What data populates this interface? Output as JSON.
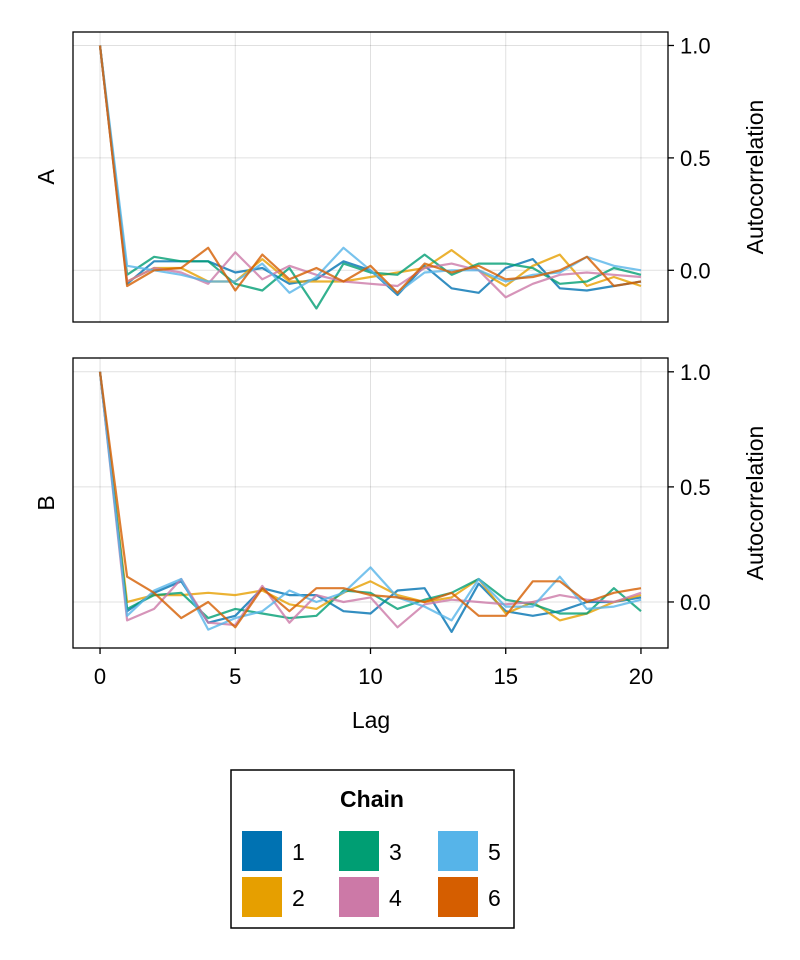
{
  "chart_data": [
    {
      "type": "line",
      "panel_label": "A",
      "ylabel": "Autocorrelation",
      "xlim": [
        -1,
        21
      ],
      "ylim": [
        -0.23,
        1.06
      ],
      "yticks": [
        0.0,
        0.5,
        1.0
      ],
      "ytick_labels": [
        "0.0",
        "0.5",
        "1.0"
      ],
      "xticks": [
        0,
        5,
        10,
        15,
        20
      ],
      "x": [
        0,
        1,
        2,
        3,
        4,
        5,
        6,
        7,
        8,
        9,
        10,
        11,
        12,
        13,
        14,
        15,
        16,
        17,
        18,
        19,
        20
      ],
      "grid": true,
      "series": [
        {
          "name": "1",
          "color": "#0072b2",
          "values": [
            1.0,
            -0.06,
            0.04,
            0.04,
            0.04,
            -0.01,
            0.01,
            -0.06,
            -0.04,
            0.04,
            0.0,
            -0.11,
            0.02,
            -0.08,
            -0.1,
            0.01,
            0.05,
            -0.08,
            -0.09,
            -0.07,
            -0.05
          ]
        },
        {
          "name": "2",
          "color": "#e69f00",
          "values": [
            1.0,
            -0.05,
            0.01,
            0.01,
            -0.05,
            -0.05,
            0.05,
            -0.05,
            -0.05,
            -0.05,
            -0.03,
            -0.01,
            0.01,
            0.09,
            0.0,
            -0.07,
            0.02,
            0.07,
            -0.07,
            -0.03,
            -0.07
          ]
        },
        {
          "name": "3",
          "color": "#009e73",
          "values": [
            1.0,
            -0.02,
            0.06,
            0.04,
            0.04,
            -0.06,
            -0.09,
            0.01,
            -0.17,
            0.03,
            -0.01,
            -0.02,
            0.07,
            -0.02,
            0.03,
            0.03,
            0.01,
            -0.06,
            -0.05,
            0.01,
            -0.02
          ]
        },
        {
          "name": "4",
          "color": "#cc79a7",
          "values": [
            1.0,
            -0.05,
            0.01,
            -0.01,
            -0.06,
            0.08,
            -0.04,
            0.02,
            -0.02,
            -0.05,
            -0.06,
            -0.07,
            0.01,
            0.03,
            0.0,
            -0.12,
            -0.06,
            -0.02,
            -0.01,
            -0.02,
            -0.03
          ]
        },
        {
          "name": "5",
          "color": "#56b4e9",
          "values": [
            1.0,
            0.02,
            0.0,
            -0.02,
            -0.05,
            -0.05,
            0.03,
            -0.1,
            -0.03,
            0.1,
            0.0,
            -0.1,
            -0.01,
            0.0,
            0.0,
            -0.05,
            -0.02,
            -0.01,
            0.06,
            0.02,
            0.0
          ]
        },
        {
          "name": "6",
          "color": "#d55e00",
          "values": [
            1.0,
            -0.07,
            0.0,
            0.01,
            0.1,
            -0.09,
            0.07,
            -0.04,
            0.01,
            -0.05,
            0.02,
            -0.1,
            0.03,
            -0.01,
            0.02,
            -0.04,
            -0.03,
            0.0,
            0.06,
            -0.07,
            -0.05
          ]
        }
      ]
    },
    {
      "type": "line",
      "panel_label": "B",
      "ylabel": "Autocorrelation",
      "xlabel": "Lag",
      "xlim": [
        -1,
        21
      ],
      "ylim": [
        -0.2,
        1.06
      ],
      "yticks": [
        0.0,
        0.5,
        1.0
      ],
      "ytick_labels": [
        "0.0",
        "0.5",
        "1.0"
      ],
      "xticks": [
        0,
        5,
        10,
        15,
        20
      ],
      "xtick_labels": [
        "0",
        "5",
        "10",
        "15",
        "20"
      ],
      "x": [
        0,
        1,
        2,
        3,
        4,
        5,
        6,
        7,
        8,
        9,
        10,
        11,
        12,
        13,
        14,
        15,
        16,
        17,
        18,
        19,
        20
      ],
      "grid": true,
      "series": [
        {
          "name": "1",
          "color": "#0072b2",
          "values": [
            1.0,
            -0.04,
            0.04,
            0.09,
            -0.09,
            -0.06,
            0.06,
            0.03,
            0.03,
            -0.04,
            -0.05,
            0.05,
            0.06,
            -0.13,
            0.08,
            -0.04,
            -0.06,
            -0.04,
            0.0,
            0.0,
            0.02
          ]
        },
        {
          "name": "2",
          "color": "#e69f00",
          "values": [
            1.0,
            0.0,
            0.03,
            0.03,
            0.04,
            0.03,
            0.05,
            -0.01,
            -0.03,
            0.04,
            0.09,
            0.03,
            0.0,
            0.02,
            0.1,
            -0.05,
            0.0,
            -0.08,
            -0.05,
            0.0,
            0.03
          ]
        },
        {
          "name": "3",
          "color": "#009e73",
          "values": [
            1.0,
            -0.03,
            0.03,
            0.04,
            -0.07,
            -0.03,
            -0.05,
            -0.07,
            -0.06,
            0.05,
            0.04,
            -0.03,
            0.01,
            0.04,
            0.1,
            0.01,
            -0.01,
            -0.05,
            -0.05,
            0.06,
            -0.04
          ]
        },
        {
          "name": "4",
          "color": "#cc79a7",
          "values": [
            1.0,
            -0.08,
            -0.03,
            0.1,
            -0.09,
            -0.1,
            0.07,
            -0.09,
            0.03,
            0.0,
            0.02,
            -0.11,
            -0.01,
            0.01,
            0.0,
            -0.01,
            0.0,
            0.03,
            0.01,
            0.0,
            0.04
          ]
        },
        {
          "name": "5",
          "color": "#56b4e9",
          "values": [
            1.0,
            -0.06,
            0.05,
            0.1,
            -0.12,
            -0.07,
            -0.04,
            0.05,
            0.0,
            0.04,
            0.15,
            0.02,
            -0.02,
            -0.08,
            0.1,
            -0.02,
            -0.02,
            0.11,
            -0.03,
            -0.02,
            0.01
          ]
        },
        {
          "name": "6",
          "color": "#d55e00",
          "values": [
            1.0,
            0.11,
            0.04,
            -0.07,
            0.0,
            -0.11,
            0.06,
            -0.04,
            0.06,
            0.06,
            0.03,
            0.02,
            0.0,
            0.04,
            -0.06,
            -0.06,
            0.09,
            0.09,
            -0.0,
            0.04,
            0.06
          ]
        }
      ]
    }
  ],
  "legend": {
    "title": "Chain",
    "items": [
      {
        "label": "1",
        "color": "#0072b2"
      },
      {
        "label": "2",
        "color": "#e69f00"
      },
      {
        "label": "3",
        "color": "#009e73"
      },
      {
        "label": "4",
        "color": "#cc79a7"
      },
      {
        "label": "5",
        "color": "#56b4e9"
      },
      {
        "label": "6",
        "color": "#d55e00"
      }
    ]
  }
}
